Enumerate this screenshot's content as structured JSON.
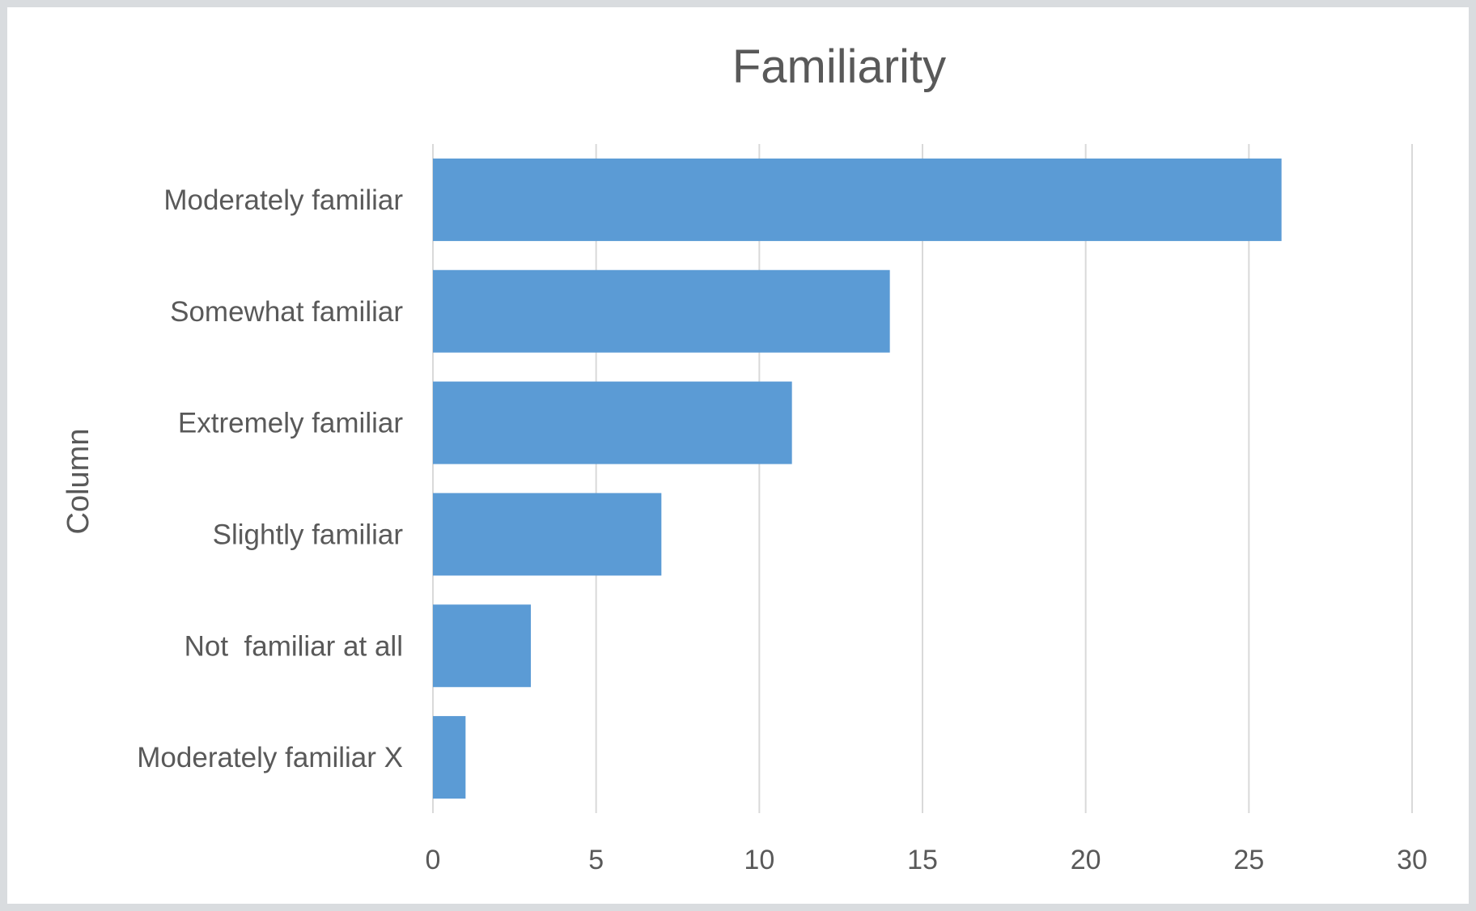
{
  "chart_data": {
    "type": "bar",
    "orientation": "horizontal",
    "title": "Familiarity",
    "xlabel": "",
    "ylabel": "Column",
    "categories": [
      "Moderately familiar",
      "Somewhat familiar",
      "Extremely familiar",
      "Slightly familiar",
      "Not  familiar at all",
      "Moderately familiar X"
    ],
    "values": [
      26,
      14,
      11,
      7,
      3,
      1
    ],
    "xlim": [
      0,
      30
    ],
    "xticks": [
      "0",
      "5",
      "10",
      "15",
      "20",
      "25",
      "30"
    ],
    "grid": "vertical",
    "legend": "none",
    "bar_color": "#5b9bd5"
  }
}
